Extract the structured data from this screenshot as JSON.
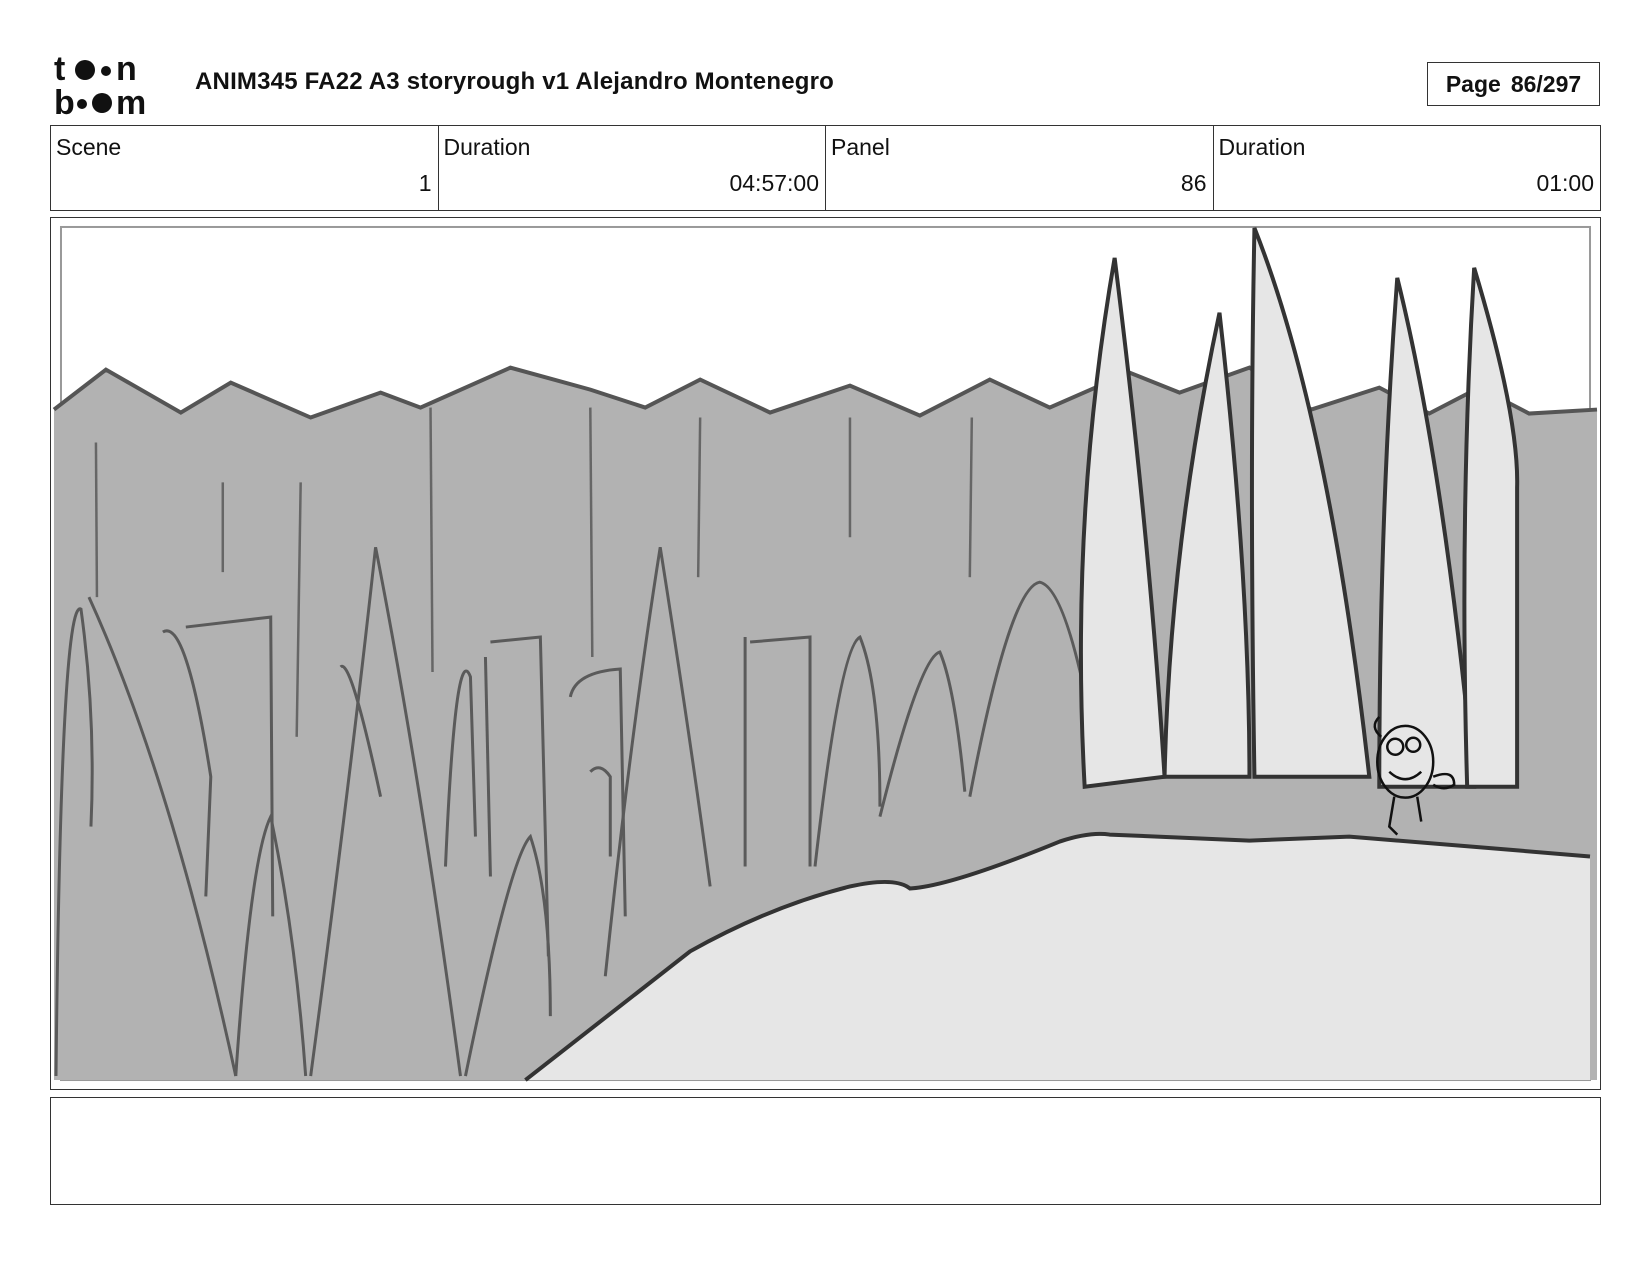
{
  "header": {
    "logo_text": "toon boom",
    "title": "ANIM345  FA22  A3 storyrough v1 Alejandro Montenegro",
    "page_label": "Page",
    "page_value": "86/297"
  },
  "info": {
    "scene_label": "Scene",
    "scene_value": "1",
    "duration_label": "Duration",
    "duration_value": "04:57:00",
    "panel_label": "Panel",
    "panel_value": "86",
    "panel_duration_label": "Duration",
    "panel_duration_value": "01:00"
  },
  "panel": {
    "image_description_icon": "storyboard-sketch",
    "colors": {
      "background_dark": "#b2b2b2",
      "foreground_light": "#e6e6e6",
      "line": "#555555",
      "line_dark": "#333333"
    }
  },
  "notes": {
    "text": ""
  }
}
